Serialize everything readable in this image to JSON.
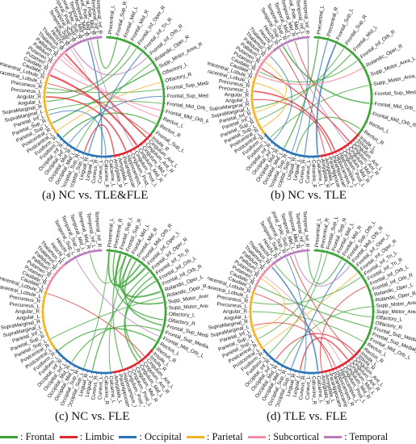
{
  "figure": {
    "legend": [
      {
        "label": ": Frontal",
        "color": "#3aa335"
      },
      {
        "label": ": Limbic",
        "color": "#e0262e"
      },
      {
        "label": ": Occipital",
        "color": "#2a72b6"
      },
      {
        "label": ": Parietal",
        "color": "#f3b326"
      },
      {
        "label": ": Subcortical",
        "color": "#f08fa4"
      },
      {
        "label": ": Temporal",
        "color": "#b87bbb"
      }
    ],
    "panels": [
      {
        "caption": "(a) NC vs. TLE&FLE",
        "visible_labels": [
          "Precentral_L",
          "Frontal_Sup_R",
          "Frontal_Mid_L",
          "Frontal_Mid_R",
          "Frontal_Inf_Oper_R",
          "Frontal_Inf_Tri_R",
          "Frontal_Inf_Orb_R",
          "Rolandic_Oper_R",
          "Supp_Motor_Area_R",
          "Olfactory_L",
          "Olfactory_R",
          "Frontal_Sup_Medial_L",
          "Frontal_Sup_Medial_R",
          "Frontal_Mid_Orb_L",
          "Frontal_Mid_Orb_R",
          "Rectus_L",
          "Rectus_R",
          "Insula_R",
          "Cingulum_Ant_L",
          "Cingulum_Ant_R",
          "Cingulum_Mid_L",
          "Cingulum_Mid_R",
          "Cingulum_Post_L",
          "Cingulum_Post_R",
          "Hippocampus_L",
          "ParaHippocampal_R",
          "Amygdala_L",
          "Amygdala_R",
          "Calcarine_L",
          "Calcarine_R",
          "Cuneus_L",
          "Cuneus_R",
          "Lingual_L",
          "Lingual_R",
          "Occipital_Sup_L",
          "Occipital_Sup_R",
          "Occipital_Mid_L",
          "Occipital_Mid_R",
          "Occipital_Inf_L",
          "Occipital_Inf_R",
          "Fusiform_L",
          "Fusiform_R",
          "Postcentral_L",
          "Postcentral_R",
          "Parietal_Sup_L",
          "Parietal_Sup_R",
          "Parietal_Inf_L",
          "SupraMarginal_L",
          "SupraMarginal_R",
          "Angular_L",
          "Angular_R",
          "Precuneus_L",
          "Precuneus_R",
          "Paracentral_Lobule_L",
          "Paracentral_Lobule_R",
          "Caudate_L",
          "Caudate_R",
          "Putamen_L",
          "Putamen_R",
          "Pallidum_L",
          "Pallidum_R",
          "Thalamus_L",
          "Thalamus_R",
          "Heschl_L",
          "Heschl_R",
          "Temporal_Sup_L",
          "Temporal_Sup_R",
          "Temporal_Pole_Sup_L",
          "Temporal_Pole_Sup_R",
          "Temporal_Mid_L",
          "Temporal_Mid_R",
          "Temporal_Pole_Mid_L",
          "Temporal_Pole_Mid_R",
          "Temporal_Inf_L",
          "Temporal_Inf_R",
          "Frontal_Sup_L"
        ]
      },
      {
        "caption": "(b) NC vs. TLE",
        "visible_labels": [
          "Precentral_L",
          "Precentral_R",
          "Frontal_Sup_L",
          "Frontal_Sup_R",
          "Frontal_Mid_L",
          "Frontal_Inf_Orb_R",
          "Rolandic_Oper_R",
          "Supp_Motor_Area_L",
          "Supp_Motor_Area_R",
          "Frontal_Sup_Medial_R",
          "Frontal_Mid_Orb_L",
          "Frontal_Mid_Orb_R",
          "Rectus_L",
          "Rectus_R",
          "Insula_L",
          "Insula_R",
          "Cingulum_Ant_L",
          "Cingulum_Ant_R",
          "Cingulum_Mid_L",
          "Cingulum_Mid_R",
          "Cingulum_Post_L",
          "Hippocampus_L",
          "Hippocampus_R",
          "ParaHippocampal_L",
          "ParaHippocampal_R",
          "Amygdala_L",
          "Amygdala_R",
          "Calcarine_L",
          "Calcarine_R",
          "Cuneus_L",
          "Cuneus_R",
          "Lingual_L",
          "Lingual_R",
          "Occipital_Sup_L",
          "Occipital_Sup_R",
          "Occipital_Mid_L",
          "Occipital_Mid_R",
          "Occipital_Inf_L",
          "Occipital_Inf_R",
          "Fusiform_L",
          "Fusiform_R",
          "Postcentral_L",
          "Postcentral_R",
          "Parietal_Sup_L",
          "Parietal_Sup_R",
          "Parietal_Inf_L",
          "Parietal_Inf_R",
          "SupraMarginal_L",
          "SupraMarginal_R",
          "Angular_L",
          "Angular_R",
          "Precuneus_L",
          "Precuneus_R",
          "Paracentral_Lobule_L",
          "Paracentral_Lobule_R",
          "Caudate_L",
          "Caudate_R",
          "Putamen_L",
          "Putamen_R",
          "Pallidum_L",
          "Pallidum_R",
          "Thalamus_L",
          "Thalamus_R",
          "Heschl_L",
          "Heschl_R",
          "Temporal_Sup_L",
          "Temporal_Sup_R",
          "Temporal_Mid_L",
          "Temporal_Mid_R",
          "Temporal_Pole_Mid_L",
          "Temporal_Inf_L",
          "Temporal_Inf_R"
        ]
      },
      {
        "caption": "(c) NC vs. FLE",
        "visible_labels": [
          "Precentral_L",
          "Precentral_R",
          "Frontal_Sup_L",
          "Frontal_Sup_R",
          "Frontal_Mid_L",
          "Frontal_Mid_R",
          "Frontal_Mid_Orb_R",
          "Frontal_Inf_Oper_L",
          "Frontal_Inf_Oper_R",
          "Frontal_Inf_Tri_R",
          "Frontal_Inf_Orb_L",
          "Frontal_Inf_Orb_R",
          "Rolandic_Oper_L",
          "Rolandic_Oper_R",
          "Supp_Motor_Area_L",
          "Supp_Motor_Area_R",
          "Olfactory_L",
          "Olfactory_R",
          "Frontal_Sup_Medial_L",
          "Frontal_Sup_Medial_R",
          "Frontal_Mid_Orb_L",
          "Rectus_L",
          "Rectus_R",
          "Insula_L",
          "Insula_R",
          "Cingulum_Ant_L",
          "Cingulum_Ant_R",
          "Cingulum_Mid_L",
          "Cingulum_Mid_R",
          "Cingulum_Post_L",
          "Cingulum_Post_R",
          "Hippocampus_L",
          "ParaHippocampal_R",
          "Amygdala_L",
          "Calcarine_L",
          "Calcarine_R",
          "Cuneus_L",
          "Cuneus_R",
          "Lingual_L",
          "Lingual_R",
          "Occipital_Sup_L",
          "Occipital_Sup_R",
          "Occipital_Mid_L",
          "Occipital_Mid_R",
          "Occipital_Inf_L",
          "Occipital_Inf_R",
          "Fusiform_L",
          "Fusiform_R",
          "Postcentral_L",
          "Postcentral_R",
          "Parietal_Sup_L",
          "Parietal_Sup_R",
          "Parietal_Inf_L",
          "SupraMarginal_L",
          "SupraMarginal_R",
          "Angular_L",
          "Angular_R",
          "Precuneus_L",
          "Precuneus_R",
          "Paracentral_Lobule_L",
          "Paracentral_Lobule_R",
          "Caudate_L",
          "Caudate_R",
          "Putamen_L",
          "Putamen_R",
          "Pallidum_L",
          "Pallidum_R",
          "Thalamus_L",
          "Thalamus_R",
          "Heschl_L",
          "Heschl_R",
          "Temporal_Sup_L",
          "Temporal_Sup_R",
          "Temporal_Mid_L",
          "Temporal_Mid_R",
          "Temporal_Inf_L",
          "Temporal_Inf_R"
        ]
      },
      {
        "caption": "(d) TLE vs. FLE",
        "visible_labels": [
          "Precentral_L",
          "Precentral_R",
          "Frontal_Sup_L",
          "Frontal_Sup_R",
          "Frontal_Mid_L",
          "Frontal_Mid_R",
          "Frontal_Sup_Orb_L",
          "Frontal_Mid_Orb_R",
          "Frontal_Inf_Oper_L",
          "Frontal_Inf_Oper_R",
          "Frontal_Inf_Tri_L",
          "Frontal_Inf_Tri_R",
          "Frontal_Inf_Orb_L",
          "Frontal_Inf_Orb_R",
          "Rolandic_Oper_L",
          "Rolandic_Oper_R",
          "Supp_Motor_Area_L",
          "Supp_Motor_Area_R",
          "Olfactory_L",
          "Olfactory_R",
          "Frontal_Sup_Medial_L",
          "Frontal_Sup_Medial_R",
          "Frontal_Mid_Orb_L",
          "Rectus_L",
          "Rectus_R",
          "Insula_L",
          "Insula_R",
          "Cingulum_Ant_L",
          "Cingulum_Ant_R",
          "Cingulum_Mid_L",
          "Cingulum_Mid_R",
          "Cingulum_Post_L",
          "Hippocampus_L",
          "Hippocampus_R",
          "ParaHippocampal_L",
          "ParaHippocampal_R",
          "Amygdala_L",
          "Amygdala_R",
          "Calcarine_L",
          "Calcarine_R",
          "Cuneus_L",
          "Cuneus_R",
          "Lingual_L",
          "Lingual_R",
          "Occipital_Sup_L",
          "Occipital_Sup_R",
          "Occipital_Mid_L",
          "Occipital_Mid_R",
          "Occipital_Inf_L",
          "Occipital_Inf_R",
          "Fusiform_L",
          "Fusiform_R",
          "Postcentral_L",
          "Postcentral_R",
          "Parietal_Sup_L",
          "Parietal_Sup_R",
          "Parietal_Inf_L",
          "SupraMarginal_L",
          "SupraMarginal_R",
          "Angular_L",
          "Angular_R",
          "Precuneus_L",
          "Precuneus_R",
          "Paracentral_Lobule_L",
          "Paracentral_Lobule_R",
          "Caudate_L",
          "Caudate_R",
          "Putamen_L",
          "Putamen_R",
          "Pallidum_L",
          "Pallidum_R",
          "Thalamus_L",
          "Thalamus_R",
          "Heschl_L",
          "Heschl_R",
          "Temporal_Sup_L",
          "Temporal_Sup_R",
          "Temporal_Pole_Sup_L",
          "Temporal_Mid_L",
          "Temporal_Mid_R",
          "Temporal_Inf_L",
          "Temporal_Inf_R"
        ]
      }
    ]
  }
}
